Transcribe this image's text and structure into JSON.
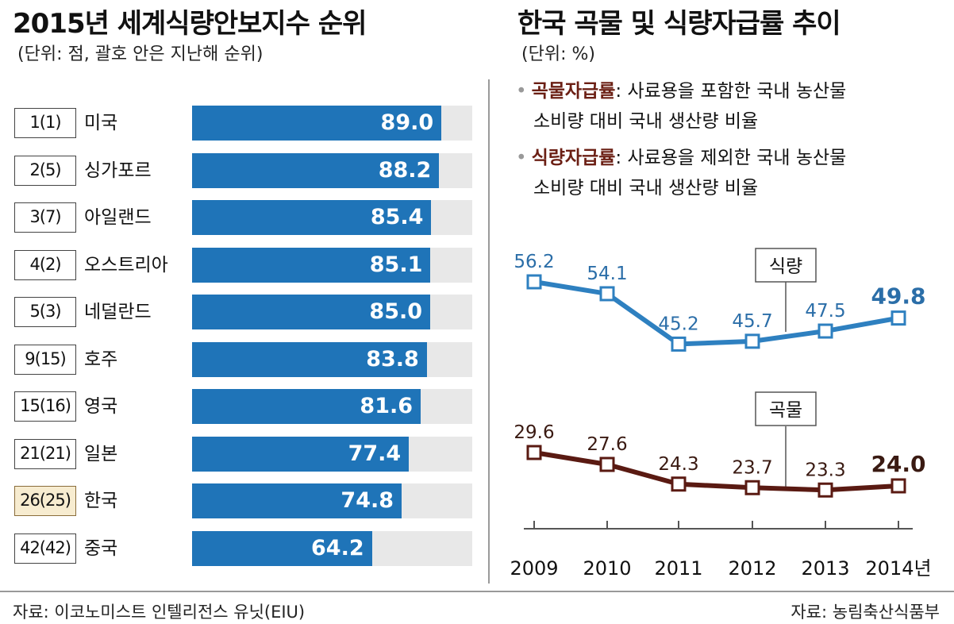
{
  "left": {
    "title": "2015년 세계식량안보지수 순위",
    "unit": "(단위: 점, 괄호 안은 지난해 순위)",
    "source": "자료: 이코노미스트 인텔리전스 유닛(EIU)"
  },
  "right": {
    "title": "한국 곡물 및 식량자급률 추이",
    "unit": "(단위: %)",
    "legend": [
      {
        "term": "곡물자급률",
        "line1": ": 사료용을 포함한 국내 농산물",
        "line2": "소비량 대비 국내 생산량 비율"
      },
      {
        "term": "식량자급률",
        "line1": ": 사료용을 제외한 국내 농산물",
        "line2": "소비량 대비 국내 생산량 비율"
      }
    ],
    "source": "자료: 농림축산식품부"
  },
  "chart_data": [
    {
      "type": "bar",
      "orientation": "horizontal",
      "title": "2015년 세계식량안보지수 순위",
      "ranks": [
        "1(1)",
        "2(5)",
        "3(7)",
        "4(2)",
        "5(3)",
        "9(15)",
        "15(16)",
        "21(21)",
        "26(25)",
        "42(42)"
      ],
      "categories": [
        "미국",
        "싱가포르",
        "아일랜드",
        "오스트리아",
        "네덜란드",
        "호주",
        "영국",
        "일본",
        "한국",
        "중국"
      ],
      "values": [
        89.0,
        88.2,
        85.4,
        85.1,
        85.0,
        83.8,
        81.6,
        77.4,
        74.8,
        64.2
      ],
      "value_labels": [
        "89.0",
        "88.2",
        "85.4",
        "85.1",
        "85.0",
        "83.8",
        "81.6",
        "77.4",
        "74.8",
        "64.2"
      ],
      "highlight": "한국",
      "xlim": [
        0,
        100
      ],
      "colors": {
        "bar": "#1f74b8",
        "track": "#e8e8e8",
        "highlight_box": "#f7ecd0"
      }
    },
    {
      "type": "line",
      "title": "한국 곡물 및 식량자급률 추이",
      "x": [
        "2009",
        "2010",
        "2011",
        "2012",
        "2013",
        "2014년"
      ],
      "series": [
        {
          "name": "식량",
          "values": [
            56.2,
            54.1,
            45.2,
            45.7,
            47.5,
            49.8
          ],
          "labels": [
            "56.2",
            "54.1",
            "45.2",
            "45.7",
            "47.5",
            "49.8"
          ],
          "color": "#2e80c0"
        },
        {
          "name": "곡물",
          "values": [
            29.6,
            27.6,
            24.3,
            23.7,
            23.3,
            24.0
          ],
          "labels": [
            "29.6",
            "27.6",
            "24.3",
            "23.7",
            "23.3",
            "24.0"
          ],
          "color": "#5a1a12"
        }
      ],
      "colors": {
        "axis": "#555555"
      }
    }
  ]
}
